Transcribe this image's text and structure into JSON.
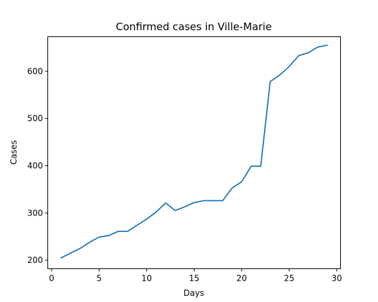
{
  "chart_data": {
    "type": "line",
    "title": "Confirmed cases in Ville-Marie",
    "xlabel": "Days",
    "ylabel": "Cases",
    "xlim": [
      -0.4,
      30.4
    ],
    "ylim": [
      182,
      673
    ],
    "xticks": [
      0,
      5,
      10,
      15,
      20,
      25,
      30
    ],
    "yticks": [
      200,
      300,
      400,
      500,
      600
    ],
    "grid": false,
    "colors": {
      "series": "#1f77b4"
    },
    "x": [
      1,
      2,
      3,
      4,
      5,
      6,
      7,
      8,
      9,
      10,
      11,
      12,
      13,
      14,
      15,
      16,
      17,
      18,
      19,
      20,
      21,
      22,
      23,
      24,
      25,
      26,
      27,
      28,
      29
    ],
    "series": [
      {
        "values": [
          205,
          215,
          225,
          238,
          249,
          252,
          261,
          261,
          274,
          287,
          302,
          321,
          305,
          313,
          322,
          326,
          326,
          326,
          353,
          366,
          399,
          399,
          578,
          592,
          610,
          633,
          639,
          651,
          655
        ]
      }
    ]
  }
}
